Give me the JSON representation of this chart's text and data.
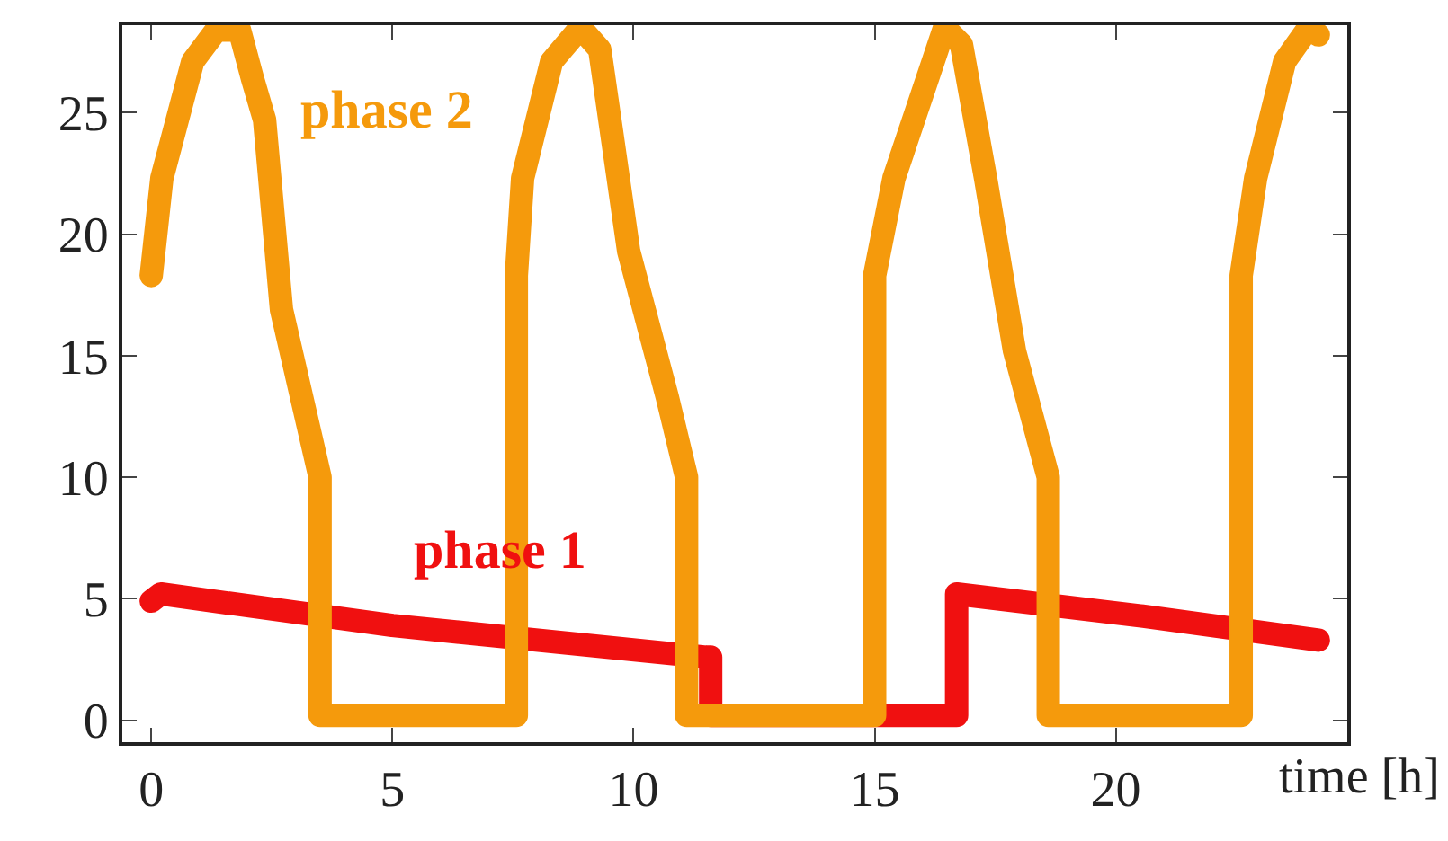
{
  "chart_data": {
    "type": "line",
    "xlabel": "time [h]",
    "xlim": [
      -0.6,
      24.8
    ],
    "xticks": [
      0,
      5,
      10,
      15,
      20
    ],
    "ylim": [
      -0.9,
      28.6
    ],
    "yticks": [
      0,
      5,
      10,
      15,
      20,
      25
    ],
    "grid": false,
    "legend": false,
    "marker": "none",
    "line_style": "solid",
    "series": [
      {
        "name": "phase 1",
        "color": "#f01010",
        "x": [
          0,
          0.2,
          5,
          11.5,
          11.6,
          11.6,
          16.7,
          16.7,
          20.5,
          24.2
        ],
        "values": [
          4.9,
          5.2,
          3.9,
          2.6,
          2.6,
          0.2,
          0.2,
          5.2,
          4.3,
          3.3
        ]
      },
      {
        "name": "phase 2",
        "color": "#f59a0c",
        "x": [
          0,
          0.22,
          0.86,
          1.35,
          1.83,
          2.1,
          2.35,
          2.7,
          3.5,
          3.5,
          7.57,
          7.57,
          7.7,
          8.3,
          8.9,
          9.3,
          9.9,
          10.7,
          11.1,
          11.1,
          15.0,
          15.0,
          15.4,
          16.45,
          16.8,
          17.3,
          17.9,
          18.6,
          18.6,
          22.6,
          22.6,
          22.9,
          23.5,
          24.0,
          24.2
        ],
        "values": [
          18.3,
          22.3,
          27.1,
          28.4,
          28.4,
          26.4,
          24.7,
          16.9,
          10,
          0.2,
          0.2,
          18.3,
          22.3,
          27.1,
          28.5,
          27.6,
          19.3,
          13.3,
          10,
          0.2,
          0.2,
          18.3,
          22.3,
          28.5,
          27.8,
          22.3,
          15.2,
          10,
          0.2,
          0.2,
          18.3,
          22.3,
          27.1,
          28.5,
          28.2
        ]
      }
    ]
  }
}
